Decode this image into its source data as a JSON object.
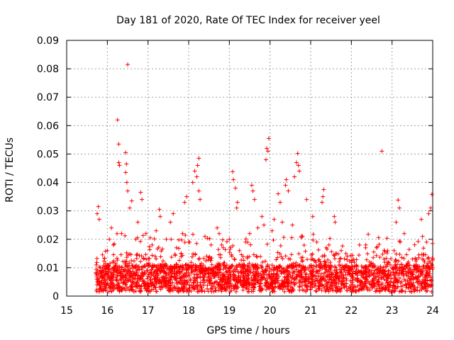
{
  "chart_data": {
    "type": "scatter",
    "title": "Day 181 of 2020, Rate Of TEC Index for receiver yeel",
    "xlabel": "GPS time / hours",
    "ylabel": "ROTI / TECUs",
    "xlim": [
      15,
      24
    ],
    "ylim": [
      0,
      0.09
    ],
    "xticks": [
      "15",
      "16",
      "17",
      "18",
      "19",
      "20",
      "21",
      "22",
      "23",
      "24"
    ],
    "yticks": [
      "0",
      "0.01",
      "0.02",
      "0.03",
      "0.04",
      "0.05",
      "0.06",
      "0.07",
      "0.08",
      "0.09"
    ],
    "grid": true,
    "marker": "+",
    "color": "#ff0000",
    "series": [
      {
        "name": "ROTI",
        "points": [
          [
            16.5,
            0.0815
          ],
          [
            16.25,
            0.062
          ],
          [
            16.28,
            0.0535
          ],
          [
            16.28,
            0.047
          ],
          [
            16.3,
            0.046
          ],
          [
            16.45,
            0.0505
          ],
          [
            16.47,
            0.0465
          ],
          [
            16.45,
            0.0435
          ],
          [
            16.48,
            0.04
          ],
          [
            16.5,
            0.037
          ],
          [
            22.75,
            0.051
          ],
          [
            19.97,
            0.0555
          ],
          [
            19.92,
            0.052
          ],
          [
            19.95,
            0.051
          ],
          [
            19.9,
            0.048
          ],
          [
            20.68,
            0.0502
          ],
          [
            20.65,
            0.047
          ],
          [
            20.7,
            0.046
          ],
          [
            20.72,
            0.044
          ],
          [
            20.6,
            0.042
          ],
          [
            18.25,
            0.0485
          ],
          [
            18.22,
            0.046
          ],
          [
            18.15,
            0.044
          ],
          [
            18.2,
            0.042
          ],
          [
            18.1,
            0.04
          ],
          [
            18.25,
            0.037
          ],
          [
            18.28,
            0.034
          ],
          [
            19.08,
            0.0438
          ],
          [
            19.1,
            0.041
          ],
          [
            19.15,
            0.038
          ],
          [
            19.2,
            0.033
          ],
          [
            19.18,
            0.031
          ],
          [
            20.4,
            0.041
          ],
          [
            20.38,
            0.039
          ],
          [
            20.45,
            0.037
          ],
          [
            20.2,
            0.036
          ],
          [
            20.25,
            0.033
          ],
          [
            19.55,
            0.039
          ],
          [
            19.58,
            0.037
          ],
          [
            19.62,
            0.034
          ],
          [
            21.32,
            0.0375
          ],
          [
            21.3,
            0.035
          ],
          [
            21.28,
            0.033
          ],
          [
            23.98,
            0.0358
          ],
          [
            23.95,
            0.031
          ],
          [
            23.9,
            0.029
          ],
          [
            23.15,
            0.0338
          ],
          [
            23.18,
            0.031
          ],
          [
            23.1,
            0.026
          ],
          [
            15.78,
            0.0315
          ],
          [
            15.75,
            0.029
          ],
          [
            15.8,
            0.027
          ],
          [
            17.28,
            0.0305
          ],
          [
            17.3,
            0.028
          ],
          [
            16.82,
            0.0365
          ],
          [
            16.85,
            0.034
          ],
          [
            16.6,
            0.0335
          ],
          [
            16.55,
            0.031
          ],
          [
            17.95,
            0.035
          ],
          [
            17.9,
            0.033
          ],
          [
            17.62,
            0.029
          ],
          [
            17.55,
            0.026
          ],
          [
            18.75,
            0.022
          ],
          [
            18.7,
            0.024
          ],
          [
            19.4,
            0.019
          ],
          [
            19.8,
            0.028
          ],
          [
            19.85,
            0.025
          ],
          [
            20.9,
            0.034
          ],
          [
            21.05,
            0.028
          ],
          [
            21.58,
            0.028
          ],
          [
            21.6,
            0.026
          ],
          [
            22.2,
            0.018
          ],
          [
            22.35,
            0.017
          ],
          [
            22.55,
            0.0155
          ],
          [
            22.62,
            0.017
          ],
          [
            23.3,
            0.022
          ],
          [
            23.5,
            0.013
          ],
          [
            23.72,
            0.027
          ],
          [
            23.75,
            0.021
          ],
          [
            23.85,
            0.019
          ],
          [
            15.8,
            0.0015
          ],
          [
            15.85,
            0.0035
          ],
          [
            16.0,
            0.016
          ],
          [
            16.05,
            0.02
          ],
          [
            16.1,
            0.024
          ],
          [
            16.15,
            0.018
          ],
          [
            16.35,
            0.022
          ],
          [
            16.7,
            0.02
          ],
          [
            16.75,
            0.026
          ],
          [
            16.95,
            0.022
          ],
          [
            17.1,
            0.018
          ],
          [
            17.2,
            0.023
          ],
          [
            17.45,
            0.02
          ],
          [
            17.7,
            0.017
          ],
          [
            17.85,
            0.022
          ],
          [
            18.0,
            0.019
          ],
          [
            18.4,
            0.021
          ],
          [
            18.55,
            0.018
          ],
          [
            18.85,
            0.017
          ],
          [
            19.0,
            0.02
          ],
          [
            19.25,
            0.016
          ],
          [
            19.5,
            0.022
          ],
          [
            19.7,
            0.024
          ],
          [
            20.05,
            0.023
          ],
          [
            20.1,
            0.027
          ],
          [
            20.3,
            0.026
          ],
          [
            20.55,
            0.025
          ],
          [
            20.8,
            0.021
          ],
          [
            21.15,
            0.019
          ],
          [
            21.45,
            0.018
          ],
          [
            21.75,
            0.016
          ],
          [
            21.9,
            0.014
          ],
          [
            22.05,
            0.013
          ],
          [
            22.45,
            0.012
          ],
          [
            22.8,
            0.013
          ],
          [
            22.9,
            0.012
          ],
          [
            23.05,
            0.016
          ],
          [
            23.2,
            0.019
          ],
          [
            23.4,
            0.012
          ],
          [
            23.6,
            0.011
          ],
          [
            23.8,
            0.012
          ],
          [
            24.0,
            0.013
          ]
        ]
      }
    ]
  }
}
